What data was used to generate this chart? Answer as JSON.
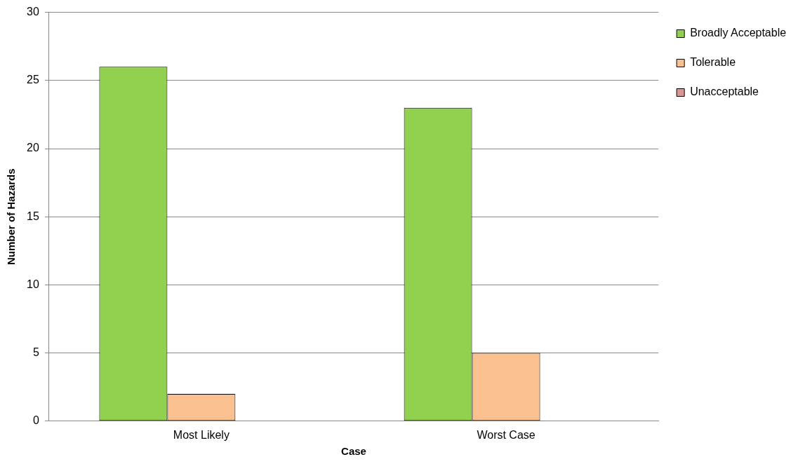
{
  "chart_data": {
    "type": "bar",
    "xlabel": "Case",
    "ylabel": "Number of Hazards",
    "categories": [
      "Most Likely",
      "Worst Case"
    ],
    "series": [
      {
        "name": "Broadly Acceptable",
        "color": "#92d050",
        "values": [
          26,
          23
        ]
      },
      {
        "name": "Tolerable",
        "color": "#fac090",
        "values": [
          2,
          5
        ]
      },
      {
        "name": "Unacceptable",
        "color": "#d99594",
        "values": [
          0,
          0
        ]
      }
    ],
    "ylim": [
      0,
      30
    ],
    "yticks": [
      0,
      5,
      10,
      15,
      20,
      25,
      30
    ],
    "grid": "y",
    "legend": "top right"
  }
}
